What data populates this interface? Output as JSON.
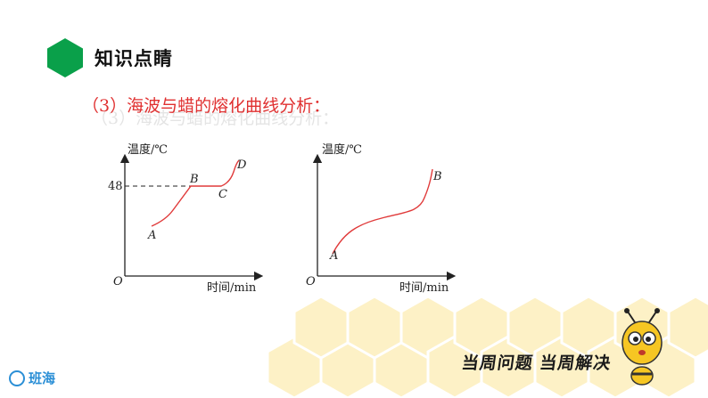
{
  "header": {
    "title": "知识点睛"
  },
  "subtitle": "（3）海波与蜡的熔化曲线分析：",
  "ghost_subtitle": "（3）海波与蜡的熔化曲线分析：",
  "graph_left": {
    "ylabel": "温度/℃",
    "xlabel": "时间/min",
    "origin": "O",
    "tick_48": "48",
    "points": {
      "A": "A",
      "B": "B",
      "C": "C",
      "D": "D"
    }
  },
  "graph_right": {
    "ylabel": "温度/℃",
    "xlabel": "时间/min",
    "origin": "O",
    "points": {
      "A": "A",
      "B": "B"
    }
  },
  "footer": {
    "slogan": "当周问题 当周解决",
    "logo": "班海"
  },
  "colors": {
    "accent": "#0aa04a",
    "curve": "#e03a3a",
    "subtitle": "#e03030",
    "logo": "#2b8fd6"
  }
}
